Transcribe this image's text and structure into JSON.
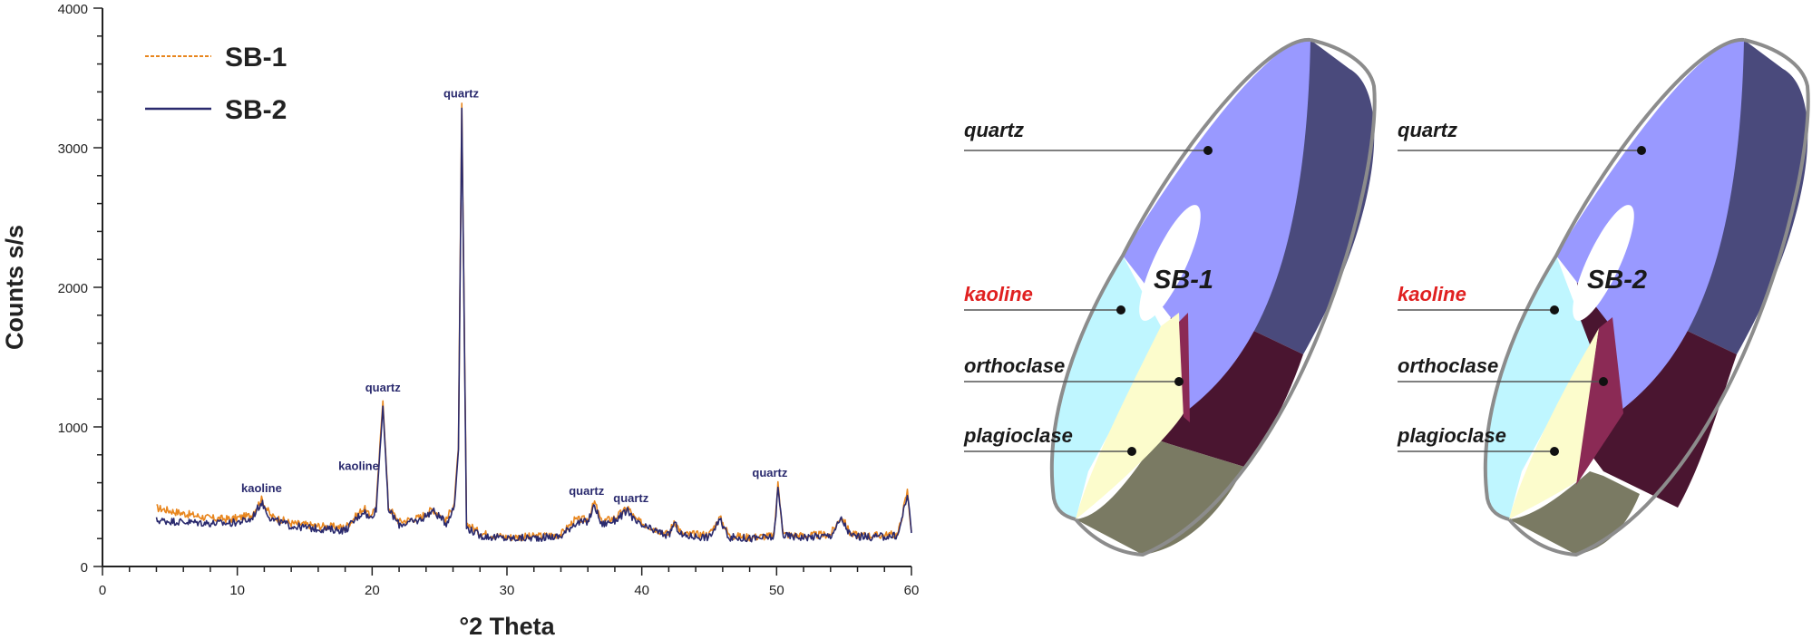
{
  "chart_data": [
    {
      "type": "line",
      "xlabel": "°2 Theta",
      "ylabel": "Counts s/s",
      "xlim": [
        0,
        60
      ],
      "ylim": [
        0,
        4000
      ],
      "x_ticks": [
        0,
        10,
        20,
        30,
        40,
        50,
        60
      ],
      "y_ticks": [
        0,
        1000,
        2000,
        3000,
        4000
      ],
      "legend_position": "top-left",
      "series": [
        {
          "name": "SB-1",
          "style": "dashed",
          "color": "#e8861e",
          "x": [
            4,
            6,
            8,
            9.5,
            11,
            11.8,
            12.5,
            14,
            16,
            18,
            19.4,
            19.8,
            20.3,
            20.8,
            21.2,
            22,
            23.5,
            24.5,
            25.5,
            26.1,
            26.4,
            26.65,
            27,
            28,
            30,
            32,
            34,
            35,
            36,
            36.5,
            37,
            38,
            39,
            39.5,
            40,
            42,
            42.4,
            43,
            45,
            45.8,
            46.5,
            48,
            49.8,
            50.1,
            50.5,
            52,
            54,
            54.8,
            55.5,
            57,
            59,
            59.7,
            60
          ],
          "y": [
            420,
            380,
            345,
            340,
            365,
            480,
            360,
            310,
            290,
            280,
            420,
            360,
            430,
            1200,
            430,
            320,
            350,
            410,
            330,
            460,
            860,
            3310,
            310,
            240,
            210,
            215,
            230,
            330,
            340,
            460,
            320,
            350,
            420,
            340,
            310,
            230,
            330,
            230,
            230,
            350,
            220,
            210,
            220,
            590,
            230,
            220,
            230,
            360,
            230,
            220,
            230,
            540,
            250
          ]
        },
        {
          "name": "SB-2",
          "style": "solid",
          "color": "#2a2a6e",
          "x": [
            4,
            6,
            8,
            9.5,
            11,
            11.8,
            12.5,
            14,
            16,
            18,
            19.4,
            19.8,
            20.3,
            20.8,
            21.2,
            22,
            23.5,
            24.5,
            25.5,
            26.1,
            26.4,
            26.65,
            27,
            28,
            30,
            32,
            34,
            35,
            36,
            36.5,
            37,
            38,
            39,
            39.5,
            40,
            42,
            42.4,
            43,
            45,
            45.8,
            46.5,
            48,
            49.8,
            50.1,
            50.5,
            52,
            54,
            54.8,
            55.5,
            57,
            59,
            59.7,
            60
          ],
          "y": [
            330,
            320,
            310,
            310,
            335,
            460,
            340,
            290,
            270,
            260,
            400,
            340,
            410,
            1160,
            410,
            300,
            330,
            400,
            310,
            430,
            840,
            3280,
            280,
            220,
            200,
            205,
            215,
            310,
            320,
            440,
            300,
            330,
            400,
            320,
            290,
            220,
            310,
            220,
            210,
            330,
            210,
            200,
            210,
            560,
            220,
            210,
            220,
            340,
            220,
            210,
            220,
            520,
            240
          ]
        }
      ],
      "annotations": [
        {
          "text": "kaoline",
          "x": 11.8,
          "y": 480
        },
        {
          "text": "kaoline",
          "x": 19.0,
          "y": 640
        },
        {
          "text": "quartz",
          "x": 20.8,
          "y": 1200
        },
        {
          "text": "quartz",
          "x": 26.6,
          "y": 3310
        },
        {
          "text": "quartz",
          "x": 35.9,
          "y": 460
        },
        {
          "text": "quartz",
          "x": 39.2,
          "y": 410
        },
        {
          "text": "quartz",
          "x": 49.5,
          "y": 590
        }
      ]
    },
    {
      "type": "pie",
      "center_label": "SB-1",
      "labels": [
        "quartz",
        "kaoline",
        "orthoclase",
        "plagioclase"
      ]
    },
    {
      "type": "pie",
      "center_label": "SB-2",
      "labels": [
        "quartz",
        "kaoline",
        "orthoclase",
        "plagioclase"
      ]
    }
  ],
  "colors": {
    "quartz": "#9999ff",
    "quartz_side": "#4a4a7c",
    "kaoline": "#bff6ff",
    "kaoline_side": "#7a7a63",
    "orthoclase": "#8b2a55",
    "orthoclase_side": "#4a1530",
    "plagioclase": "#fcfccc",
    "kaoline_label": "#e02020"
  }
}
